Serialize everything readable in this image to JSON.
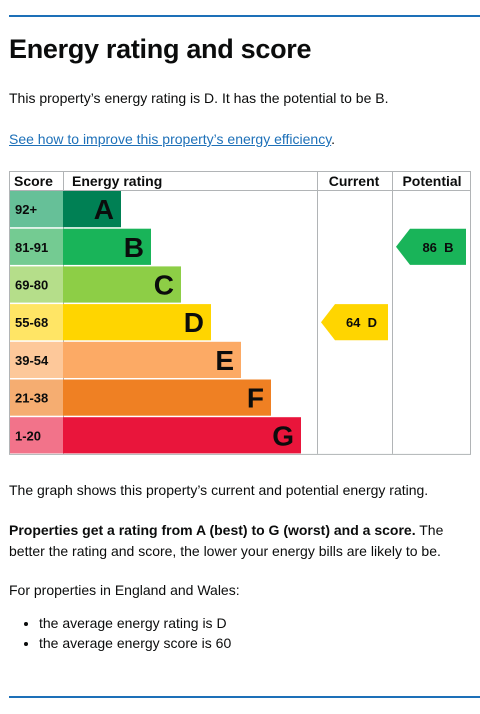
{
  "page": {
    "title": "Energy rating and score",
    "intro": "This property’s energy rating is D. It has the potential to be B.",
    "link_text": "See how to improve this property’s energy efficiency",
    "link_suffix": ".",
    "graph_caption": "The graph shows this property’s current and potential energy rating.",
    "props_bold": "Properties get a rating from A (best) to G (worst) and a score.",
    "props_rest": " The better the rating and score, the lower your energy bills are likely to be.",
    "england_wales": "For properties in England and Wales:",
    "averages": [
      "the average energy rating is D",
      "the average energy score is 60"
    ]
  },
  "chart_data": {
    "type": "table",
    "headers": {
      "score": "Score",
      "rating": "Energy rating",
      "current": "Current",
      "potential": "Potential"
    },
    "bands": [
      {
        "letter": "A",
        "score": "92+",
        "min": 92,
        "color": "#008054",
        "score_bg": "#66c098"
      },
      {
        "letter": "B",
        "score": "81-91",
        "min": 81,
        "color": "#19b459",
        "score_bg": "#74cb92"
      },
      {
        "letter": "C",
        "score": "69-80",
        "min": 69,
        "color": "#8dce46",
        "score_bg": "#b5de8a"
      },
      {
        "letter": "D",
        "score": "55-68",
        "min": 55,
        "color": "#ffd500",
        "score_bg": "#ffe565"
      },
      {
        "letter": "E",
        "score": "39-54",
        "min": 39,
        "color": "#fcaa65",
        "score_bg": "#fdc89a"
      },
      {
        "letter": "F",
        "score": "21-38",
        "min": 21,
        "color": "#ef8023",
        "score_bg": "#f5ad71"
      },
      {
        "letter": "G",
        "score": "1-20",
        "min": 1,
        "color": "#e9153b",
        "score_bg": "#f2738a"
      }
    ],
    "current": {
      "score": 64,
      "letter": "D",
      "label": "64  D"
    },
    "potential": {
      "score": 86,
      "letter": "B",
      "label": "86  B"
    }
  }
}
